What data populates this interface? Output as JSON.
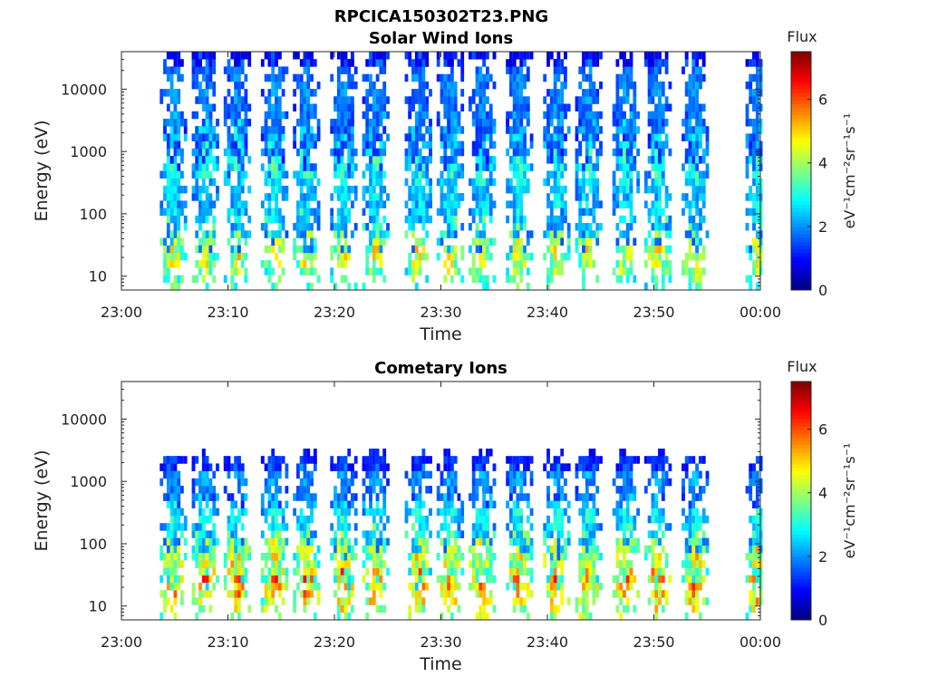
{
  "figure": {
    "title": "RPCICA150302T23.PNG"
  },
  "chart_data": [
    {
      "type": "heatmap",
      "title": "Solar Wind Ions",
      "xlabel": "Time",
      "ylabel": "Energy (eV)",
      "x_ticks": [
        "23:00",
        "23:10",
        "23:20",
        "23:30",
        "23:40",
        "23:50",
        "00:00"
      ],
      "x_range_minutes": [
        0,
        60
      ],
      "y_scale": "log",
      "y_ticks": [
        10,
        100,
        1000,
        10000
      ],
      "y_tick_labels": [
        "10",
        "100",
        "1000",
        "10000"
      ],
      "ylim": [
        6,
        40000
      ],
      "colorbar": {
        "label": "Flux",
        "unit_label": "eV⁻¹cm⁻²sr⁻¹s⁻¹",
        "ticks": [
          0,
          2,
          4,
          6
        ],
        "tick_labels": [
          "0",
          "2",
          "4",
          "6"
        ],
        "range": [
          0,
          7.5
        ],
        "colormap": "jet"
      },
      "bursts_minutes": [
        4.5,
        7.5,
        10.5,
        14,
        17,
        20.5,
        23.5,
        27.5,
        30.5,
        33.5,
        37,
        40.5,
        43.5,
        47,
        50,
        53.5,
        59.5
      ],
      "bands": [
        {
          "energy_center_eV": 22,
          "flux_level": 4.6,
          "spread": 0.5
        },
        {
          "energy_center_eV": 130,
          "flux_level": 2.8,
          "spread": 0.5
        },
        {
          "energy_center_eV": 700,
          "flux_level": 3.2,
          "spread": 0.6
        },
        {
          "energy_center_eV": 2000,
          "flux_level": 2.6,
          "spread": 0.4
        },
        {
          "energy_center_eV": 8000,
          "flux_level": 2.0,
          "spread": 0.8
        },
        {
          "energy_center_eV": 35000,
          "flux_level": 1.0,
          "spread": 0.15
        }
      ]
    },
    {
      "type": "heatmap",
      "title": "Cometary Ions",
      "xlabel": "Time",
      "ylabel": "Energy (eV)",
      "x_ticks": [
        "23:00",
        "23:10",
        "23:20",
        "23:30",
        "23:40",
        "23:50",
        "00:00"
      ],
      "x_range_minutes": [
        0,
        60
      ],
      "y_scale": "log",
      "y_ticks": [
        10,
        100,
        1000,
        10000
      ],
      "y_tick_labels": [
        "10",
        "100",
        "1000",
        "10000"
      ],
      "ylim": [
        6,
        40000
      ],
      "colorbar": {
        "label": "Flux",
        "unit_label": "eV⁻¹cm⁻²sr⁻¹s⁻¹",
        "ticks": [
          0,
          2,
          4,
          6
        ],
        "tick_labels": [
          "0",
          "2",
          "4",
          "6"
        ],
        "range": [
          0,
          7.5
        ],
        "colormap": "jet"
      },
      "bursts_minutes": [
        4.5,
        7.5,
        10.5,
        14,
        17,
        20.5,
        23.5,
        27.5,
        30.5,
        33.5,
        37,
        40.5,
        43.5,
        47,
        50,
        53.5,
        59.5
      ],
      "bands": [
        {
          "energy_center_eV": 25,
          "flux_level": 5.6,
          "spread": 0.55
        },
        {
          "energy_center_eV": 70,
          "flux_level": 4.6,
          "spread": 0.4
        },
        {
          "energy_center_eV": 250,
          "flux_level": 3.0,
          "spread": 0.4
        },
        {
          "energy_center_eV": 1100,
          "flux_level": 2.2,
          "spread": 0.3
        },
        {
          "energy_center_eV": 2100,
          "flux_level": 1.4,
          "spread": 0.12
        }
      ]
    }
  ]
}
